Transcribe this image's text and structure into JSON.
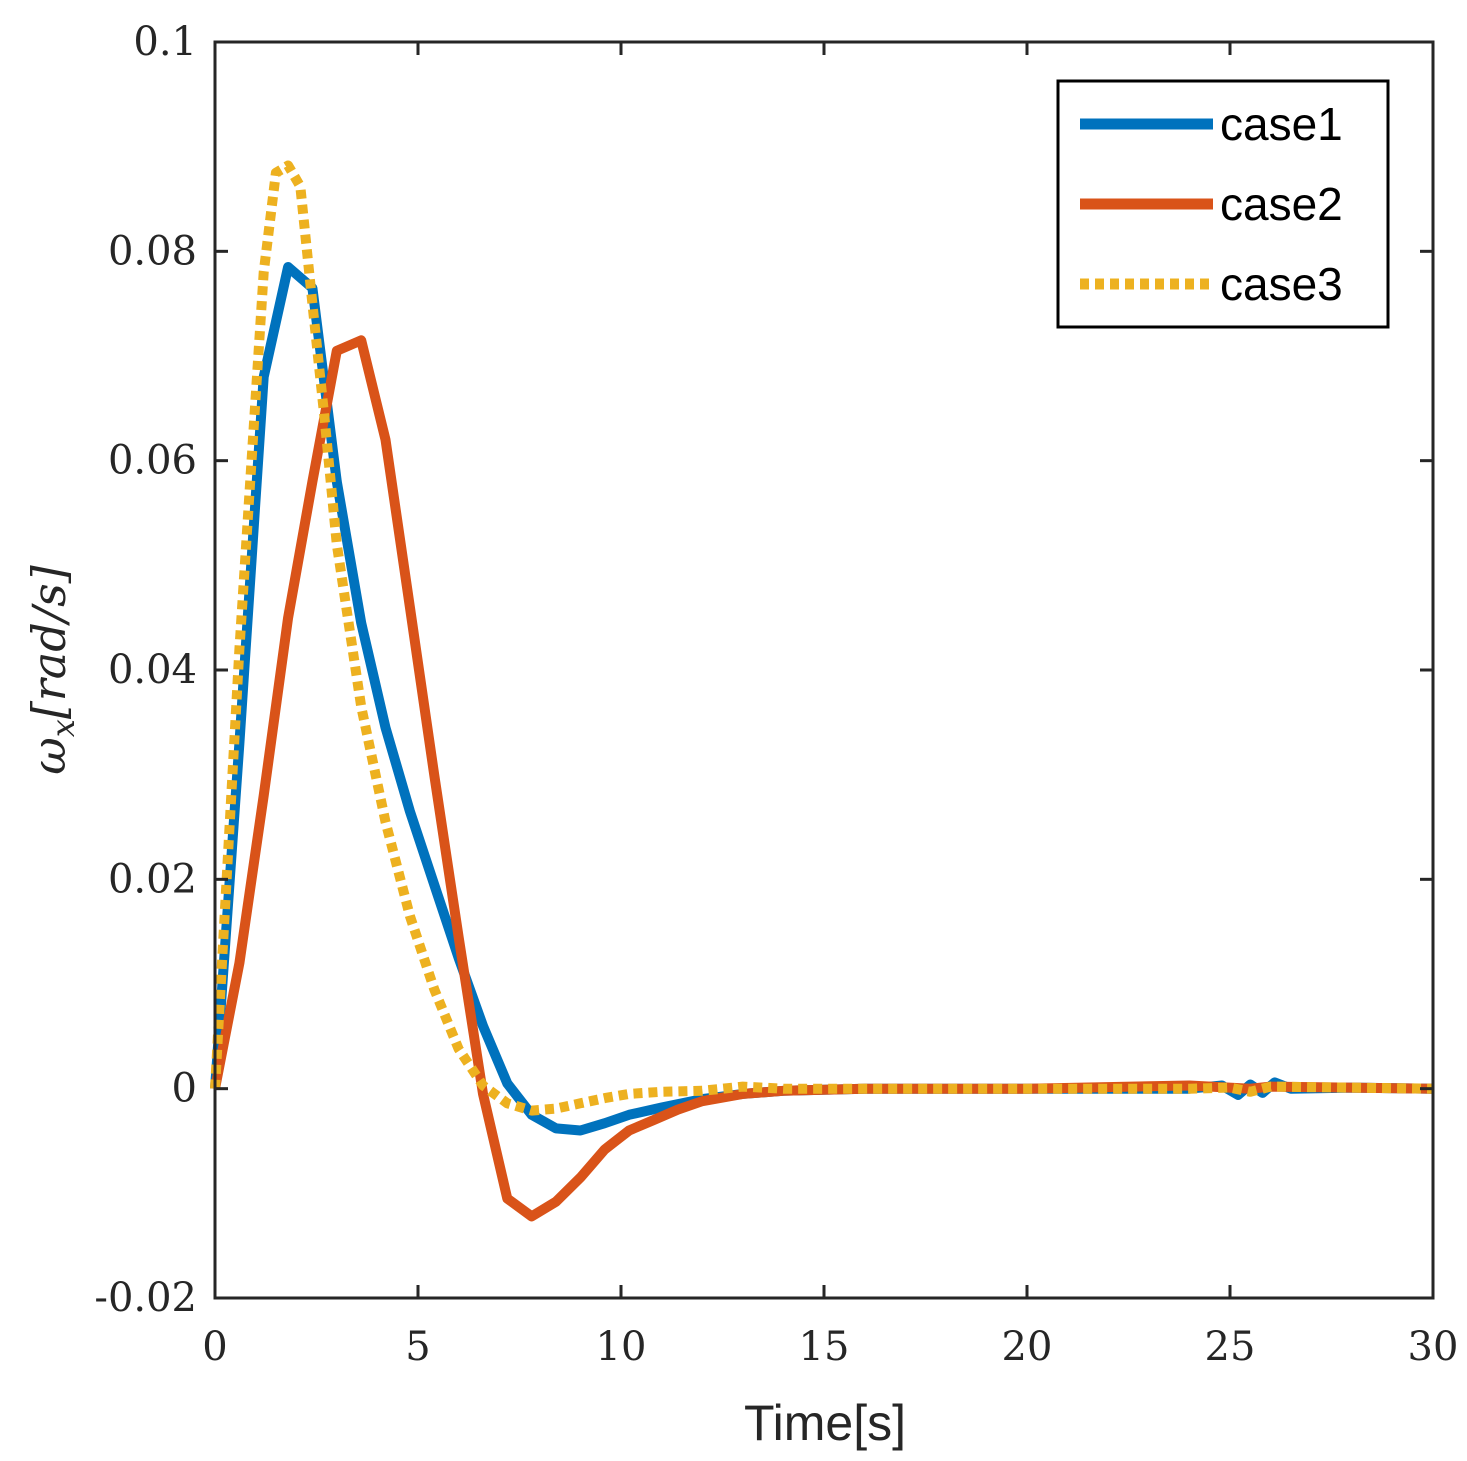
{
  "chart_data": {
    "type": "line",
    "title": "",
    "xlabel": "Time[s]",
    "ylabel": {
      "main": "ω",
      "subscript": "x",
      "unit": "[rad/s]"
    },
    "xlim": [
      0,
      30
    ],
    "ylim": [
      -0.02,
      0.1
    ],
    "xticks": [
      0,
      5,
      10,
      15,
      20,
      25,
      30
    ],
    "xtick_labels": [
      "0",
      "5",
      "10",
      "15",
      "20",
      "25",
      "30"
    ],
    "yticks": [
      -0.02,
      0,
      0.02,
      0.04,
      0.06,
      0.08,
      0.1
    ],
    "ytick_labels": [
      "-0.02",
      "0",
      "0.02",
      "0.04",
      "0.06",
      "0.08",
      "0.1"
    ],
    "grid": false,
    "legend_position": "top-right",
    "series": [
      {
        "name": "case1",
        "color": "#0072BD",
        "style": "solid",
        "x": [
          0,
          0.6,
          1.2,
          1.8,
          2.4,
          3.0,
          3.6,
          4.2,
          4.8,
          5.4,
          6.0,
          6.6,
          7.2,
          7.8,
          8.4,
          9.0,
          9.6,
          10.2,
          11.0,
          12.0,
          13.0,
          14.0,
          16.0,
          20.0,
          24.0,
          24.8,
          25.2,
          25.5,
          25.8,
          26.1,
          26.5,
          28.0,
          30.0
        ],
        "y": [
          0,
          0.033,
          0.068,
          0.0785,
          0.0765,
          0.058,
          0.0445,
          0.0345,
          0.0265,
          0.0195,
          0.0125,
          0.006,
          0.0005,
          -0.0025,
          -0.0038,
          -0.004,
          -0.0033,
          -0.0025,
          -0.0018,
          -0.001,
          -0.0005,
          -0.0002,
          0,
          0,
          0,
          0.0003,
          -0.0006,
          0.0004,
          -0.0004,
          0.0006,
          0,
          0.0001,
          0
        ]
      },
      {
        "name": "case2",
        "color": "#D95319",
        "style": "solid",
        "x": [
          0,
          0.6,
          1.2,
          1.8,
          2.4,
          3.0,
          3.6,
          4.2,
          4.8,
          5.4,
          6.0,
          6.6,
          7.2,
          7.8,
          8.4,
          9.0,
          9.6,
          10.2,
          10.8,
          11.4,
          12.0,
          13.0,
          14.0,
          16.0,
          20.0,
          24.0,
          25.5,
          26.0,
          30.0
        ],
        "y": [
          0,
          0.012,
          0.028,
          0.045,
          0.058,
          0.0705,
          0.0715,
          0.062,
          0.046,
          0.03,
          0.0145,
          -0.0005,
          -0.0105,
          -0.0122,
          -0.0108,
          -0.0085,
          -0.0058,
          -0.004,
          -0.003,
          -0.002,
          -0.0012,
          -0.0005,
          -0.0002,
          0,
          0,
          0.0003,
          0,
          0.0002,
          0
        ]
      },
      {
        "name": "case3",
        "color": "#EDB120",
        "style": "dotted",
        "x": [
          0,
          0.6,
          1.2,
          1.5,
          1.8,
          2.1,
          2.4,
          2.7,
          3.0,
          3.6,
          4.2,
          4.8,
          5.4,
          6.0,
          6.6,
          7.2,
          7.8,
          8.4,
          9.0,
          9.6,
          10.2,
          11.0,
          12.0,
          13.0,
          14.0,
          16.0,
          20.0,
          24.0,
          25.0,
          25.5,
          26.0,
          30.0
        ],
        "y": [
          0,
          0.042,
          0.078,
          0.0875,
          0.0882,
          0.0862,
          0.075,
          0.064,
          0.052,
          0.0365,
          0.0255,
          0.0165,
          0.0095,
          0.0038,
          0.0003,
          -0.0014,
          -0.0021,
          -0.0019,
          -0.0014,
          -0.0009,
          -0.0005,
          -0.0003,
          -0.0002,
          0.0002,
          0,
          0,
          0,
          0,
          0.0001,
          -0.0003,
          0.0002,
          0
        ]
      }
    ]
  }
}
